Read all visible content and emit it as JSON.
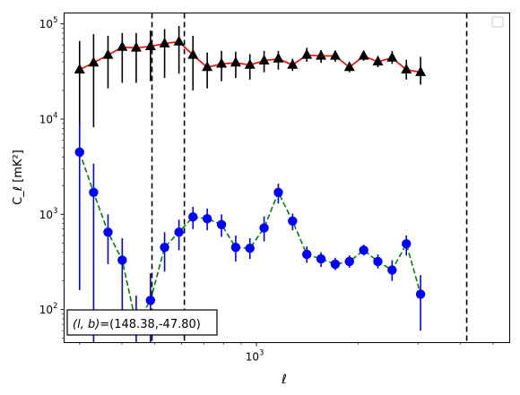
{
  "chart_data": {
    "type": "line",
    "title": "",
    "xlabel": "ℓ",
    "ylabel": "C_ℓ  [mK²]",
    "xscale": "log",
    "yscale": "log",
    "xlim": [
      270,
      5600
    ],
    "ylim": [
      45,
      130000
    ],
    "grid": false,
    "legend": {
      "placement": "top-right",
      "entries": []
    },
    "x_ticks": [
      {
        "value": 1000,
        "base": "10",
        "exp": "3"
      }
    ],
    "y_ticks": [
      {
        "value": 100,
        "base": "10",
        "exp": "2"
      },
      {
        "value": 1000,
        "base": "10",
        "exp": "3"
      },
      {
        "value": 10000,
        "base": "10",
        "exp": "4"
      },
      {
        "value": 100000,
        "base": "10",
        "exp": "5"
      }
    ],
    "vlines": [
      491,
      612,
      4180
    ],
    "annotation": {
      "prefix": "(l, b)",
      "value": "=(148.38,-47.80)"
    },
    "series": [
      {
        "marker": "triangle",
        "line_color": "#ff0000",
        "line_style": "solid",
        "marker_color": "#000000",
        "error_color": "#000000",
        "points": [
          {
            "x": 300,
            "y": 33000,
            "lo": 8200,
            "hi": 66000
          },
          {
            "x": 330,
            "y": 39000,
            "lo": 8200,
            "hi": 78000
          },
          {
            "x": 364,
            "y": 47000,
            "lo": 21000,
            "hi": 75000
          },
          {
            "x": 401,
            "y": 57000,
            "lo": 24000,
            "hi": 80000
          },
          {
            "x": 441,
            "y": 56000,
            "lo": 24000,
            "hi": 80000
          },
          {
            "x": 486,
            "y": 58000,
            "lo": 25000,
            "hi": 85000
          },
          {
            "x": 535,
            "y": 62000,
            "lo": 27000,
            "hi": 88000
          },
          {
            "x": 590,
            "y": 65000,
            "lo": 30000,
            "hi": 95000
          },
          {
            "x": 649,
            "y": 47000,
            "lo": 20000,
            "hi": 75000
          },
          {
            "x": 715,
            "y": 35000,
            "lo": 21000,
            "hi": 50000
          },
          {
            "x": 788,
            "y": 38000,
            "lo": 25000,
            "hi": 52000
          },
          {
            "x": 868,
            "y": 39000,
            "lo": 27000,
            "hi": 51000
          },
          {
            "x": 956,
            "y": 37000,
            "lo": 26000,
            "hi": 48000
          },
          {
            "x": 1053,
            "y": 41000,
            "lo": 31000,
            "hi": 52000
          },
          {
            "x": 1160,
            "y": 43000,
            "lo": 33000,
            "hi": 52000
          },
          {
            "x": 1278,
            "y": 37000,
            "lo": 32000,
            "hi": 43000
          },
          {
            "x": 1408,
            "y": 47000,
            "lo": 40000,
            "hi": 56000
          },
          {
            "x": 1551,
            "y": 46000,
            "lo": 39000,
            "hi": 53000
          },
          {
            "x": 1709,
            "y": 46000,
            "lo": 40000,
            "hi": 52000
          },
          {
            "x": 1882,
            "y": 35000,
            "lo": 31000,
            "hi": 39000
          },
          {
            "x": 2074,
            "y": 46000,
            "lo": 41000,
            "hi": 52000
          },
          {
            "x": 2284,
            "y": 40000,
            "lo": 35000,
            "hi": 46000
          },
          {
            "x": 2516,
            "y": 44000,
            "lo": 38000,
            "hi": 52000
          },
          {
            "x": 2772,
            "y": 33000,
            "lo": 26000,
            "hi": 42000
          },
          {
            "x": 3054,
            "y": 31000,
            "lo": 23000,
            "hi": 45000
          }
        ]
      },
      {
        "marker": "circle",
        "line_color": "#008000",
        "line_style": "dashed",
        "marker_color": "#0000ff",
        "error_color": "#0000ff",
        "points": [
          {
            "x": 300,
            "y": 4500,
            "lo": 160,
            "hi": 9000
          },
          {
            "x": 330,
            "y": 1700,
            "lo": 40,
            "hi": 3400
          },
          {
            "x": 364,
            "y": 650,
            "lo": 300,
            "hi": 1000
          },
          {
            "x": 401,
            "y": 330,
            "lo": 100,
            "hi": 560
          },
          {
            "x": 441,
            "y": 70,
            "lo": 40,
            "hi": 140
          },
          {
            "x": 486,
            "y": 125,
            "lo": 40,
            "hi": 240
          },
          {
            "x": 535,
            "y": 450,
            "lo": 250,
            "hi": 650
          },
          {
            "x": 590,
            "y": 650,
            "lo": 420,
            "hi": 880
          },
          {
            "x": 649,
            "y": 940,
            "lo": 700,
            "hi": 1200
          },
          {
            "x": 715,
            "y": 900,
            "lo": 680,
            "hi": 1150
          },
          {
            "x": 788,
            "y": 780,
            "lo": 580,
            "hi": 1000
          },
          {
            "x": 868,
            "y": 450,
            "lo": 320,
            "hi": 600
          },
          {
            "x": 956,
            "y": 440,
            "lo": 340,
            "hi": 560
          },
          {
            "x": 1053,
            "y": 720,
            "lo": 520,
            "hi": 950
          },
          {
            "x": 1160,
            "y": 1700,
            "lo": 1300,
            "hi": 2100
          },
          {
            "x": 1278,
            "y": 850,
            "lo": 680,
            "hi": 1020
          },
          {
            "x": 1408,
            "y": 380,
            "lo": 310,
            "hi": 460
          },
          {
            "x": 1551,
            "y": 340,
            "lo": 280,
            "hi": 400
          },
          {
            "x": 1709,
            "y": 300,
            "lo": 260,
            "hi": 350
          },
          {
            "x": 1882,
            "y": 320,
            "lo": 275,
            "hi": 370
          },
          {
            "x": 2074,
            "y": 420,
            "lo": 370,
            "hi": 480
          },
          {
            "x": 2284,
            "y": 320,
            "lo": 270,
            "hi": 380
          },
          {
            "x": 2516,
            "y": 260,
            "lo": 200,
            "hi": 330
          },
          {
            "x": 2772,
            "y": 490,
            "lo": 370,
            "hi": 600
          },
          {
            "x": 3054,
            "y": 145,
            "lo": 60,
            "hi": 230
          }
        ]
      }
    ]
  }
}
